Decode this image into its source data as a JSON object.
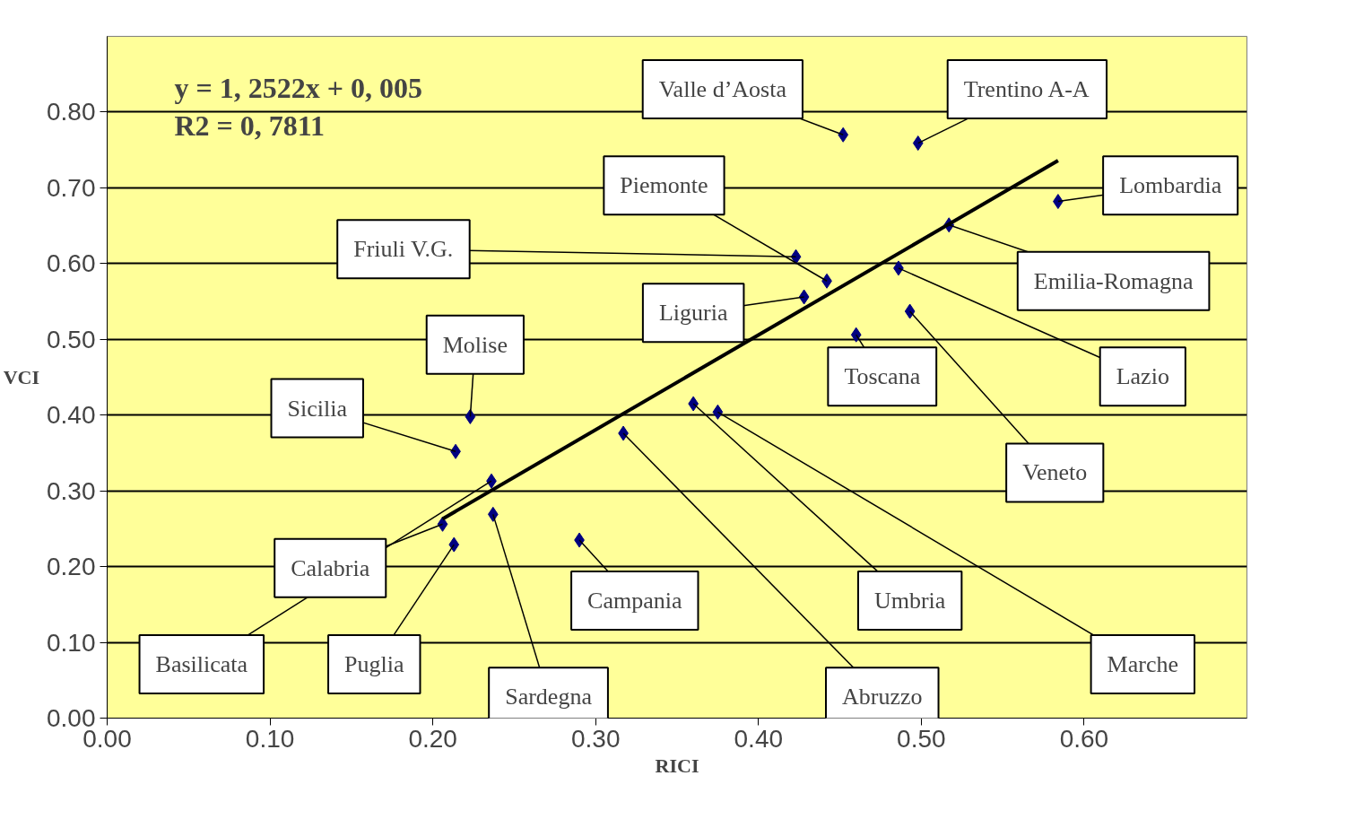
{
  "chart_data": {
    "type": "scatter",
    "xlabel": "RICI",
    "ylabel": "VCI",
    "xlim": [
      0,
      0.7
    ],
    "ylim": [
      0,
      0.9
    ],
    "xticks": [
      {
        "value": 0,
        "label": "0.00"
      },
      {
        "value": 0.1,
        "label": "0.10"
      },
      {
        "value": 0.2,
        "label": "0.20"
      },
      {
        "value": 0.3,
        "label": "0.30"
      },
      {
        "value": 0.4,
        "label": "0.40"
      },
      {
        "value": 0.5,
        "label": "0.50"
      },
      {
        "value": 0.6,
        "label": "0.60"
      }
    ],
    "yticks": [
      {
        "value": 0,
        "label": "0.00"
      },
      {
        "value": 0.1,
        "label": "0.10"
      },
      {
        "value": 0.2,
        "label": "0.20"
      },
      {
        "value": 0.3,
        "label": "0.30"
      },
      {
        "value": 0.4,
        "label": "0.40"
      },
      {
        "value": 0.5,
        "label": "0.50"
      },
      {
        "value": 0.6,
        "label": "0.60"
      },
      {
        "value": 0.7,
        "label": "0.70"
      },
      {
        "value": 0.8,
        "label": "0.80"
      }
    ],
    "grid": "y",
    "series": [
      {
        "marker": "diamond",
        "color": "#000080",
        "x": [
          0.452,
          0.498,
          0.584,
          0.517,
          0.423,
          0.442,
          0.428,
          0.486,
          0.493,
          0.46,
          0.223,
          0.214,
          0.236,
          0.206,
          0.213,
          0.237,
          0.29,
          0.317,
          0.36,
          0.375
        ],
        "values": [
          0.77,
          0.759,
          0.682,
          0.651,
          0.609,
          0.577,
          0.556,
          0.594,
          0.537,
          0.506,
          0.398,
          0.352,
          0.313,
          0.256,
          0.229,
          0.269,
          0.235,
          0.376,
          0.415,
          0.404
        ]
      },
      {
        "type": "line",
        "color": "#000000",
        "x": [
          0.206,
          0.584
        ],
        "values": [
          0.263,
          0.736
        ]
      }
    ],
    "annotations": [
      "y = 1, 2522x + 0, 005",
      "R2 = 0, 7811",
      {
        "text": "Valle d’Aosta",
        "x": 0.452,
        "y": 0.77
      },
      {
        "text": "Trentino A-A",
        "x": 0.498,
        "y": 0.759
      },
      {
        "text": "Lombardia",
        "x": 0.584,
        "y": 0.682
      },
      {
        "text": "Emilia-Romagna",
        "x": 0.517,
        "y": 0.651
      },
      {
        "text": "Friuli V.G.",
        "x": 0.423,
        "y": 0.609
      },
      {
        "text": "Piemonte",
        "x": 0.442,
        "y": 0.577
      },
      {
        "text": "Liguria",
        "x": 0.428,
        "y": 0.556
      },
      {
        "text": "Lazio",
        "x": 0.486,
        "y": 0.594
      },
      {
        "text": "Veneto",
        "x": 0.493,
        "y": 0.537
      },
      {
        "text": "Toscana",
        "x": 0.46,
        "y": 0.506
      },
      {
        "text": "Molise",
        "x": 0.223,
        "y": 0.398
      },
      {
        "text": "Sicilia",
        "x": 0.214,
        "y": 0.352
      },
      {
        "text": "Basilicata",
        "x": 0.236,
        "y": 0.313
      },
      {
        "text": "Calabria",
        "x": 0.206,
        "y": 0.256
      },
      {
        "text": "Puglia",
        "x": 0.213,
        "y": 0.229
      },
      {
        "text": "Sardegna",
        "x": 0.237,
        "y": 0.269
      },
      {
        "text": "Campania",
        "x": 0.29,
        "y": 0.235
      },
      {
        "text": "Abruzzo",
        "x": 0.317,
        "y": 0.376
      },
      {
        "text": "Umbria",
        "x": 0.36,
        "y": 0.415
      },
      {
        "text": "Marche",
        "x": 0.375,
        "y": 0.404
      }
    ]
  }
}
